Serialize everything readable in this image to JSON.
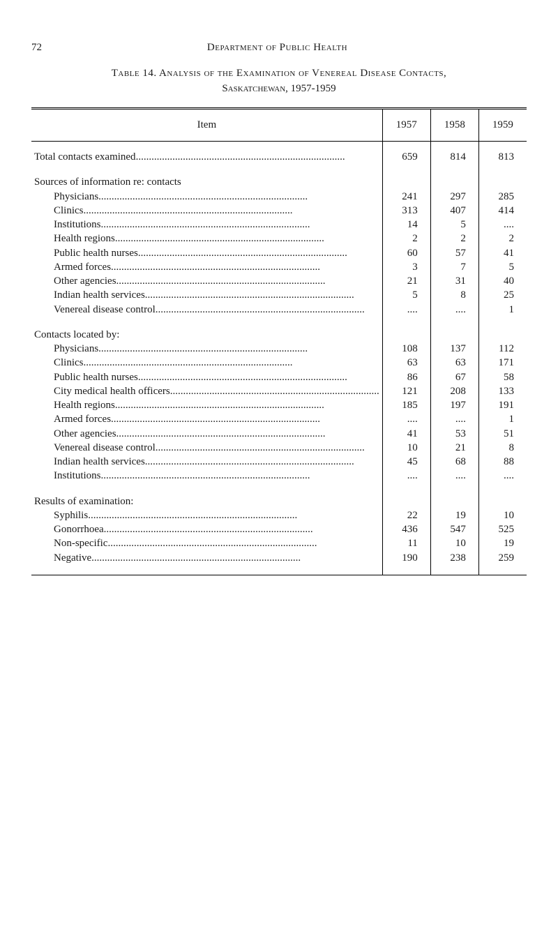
{
  "page": {
    "number": "72",
    "department": "Department of Public Health"
  },
  "caption": {
    "line1_prefix": "Table 14. ",
    "line1_main": "Analysis of the Examination of Venereal Disease Contacts,",
    "line2": "Saskatchewan, 1957-1959"
  },
  "table": {
    "headers": {
      "item": "Item",
      "y1957": "1957",
      "y1958": "1958",
      "y1959": "1959"
    },
    "sections": [
      {
        "header": null,
        "rows": [
          {
            "label": "Total contacts examined",
            "y1957": "659",
            "y1958": "814",
            "y1959": "813"
          }
        ]
      },
      {
        "header": "Sources of information re: contacts",
        "rows": [
          {
            "label": "Physicians",
            "y1957": "241",
            "y1958": "297",
            "y1959": "285"
          },
          {
            "label": "Clinics",
            "y1957": "313",
            "y1958": "407",
            "y1959": "414"
          },
          {
            "label": "Institutions",
            "y1957": "14",
            "y1958": "5",
            "y1959": "...."
          },
          {
            "label": "Health regions",
            "y1957": "2",
            "y1958": "2",
            "y1959": "2"
          },
          {
            "label": "Public health nurses",
            "y1957": "60",
            "y1958": "57",
            "y1959": "41"
          },
          {
            "label": "Armed forces",
            "y1957": "3",
            "y1958": "7",
            "y1959": "5"
          },
          {
            "label": "Other agencies",
            "y1957": "21",
            "y1958": "31",
            "y1959": "40"
          },
          {
            "label": "Indian health services",
            "y1957": "5",
            "y1958": "8",
            "y1959": "25"
          },
          {
            "label": "Venereal disease control",
            "y1957": "....",
            "y1958": "....",
            "y1959": "1"
          }
        ]
      },
      {
        "header": "Contacts located by:",
        "rows": [
          {
            "label": "Physicians",
            "y1957": "108",
            "y1958": "137",
            "y1959": "112"
          },
          {
            "label": "Clinics",
            "y1957": "63",
            "y1958": "63",
            "y1959": "171"
          },
          {
            "label": "Public health nurses",
            "y1957": "86",
            "y1958": "67",
            "y1959": "58"
          },
          {
            "label": "City medical health officers",
            "y1957": "121",
            "y1958": "208",
            "y1959": "133"
          },
          {
            "label": "Health regions",
            "y1957": "185",
            "y1958": "197",
            "y1959": "191"
          },
          {
            "label": "Armed forces",
            "y1957": "....",
            "y1958": "....",
            "y1959": "1"
          },
          {
            "label": "Other agencies",
            "y1957": "41",
            "y1958": "53",
            "y1959": "51"
          },
          {
            "label": "Venereal disease control",
            "y1957": "10",
            "y1958": "21",
            "y1959": "8"
          },
          {
            "label": "Indian health services",
            "y1957": "45",
            "y1958": "68",
            "y1959": "88"
          },
          {
            "label": "Institutions",
            "y1957": "....",
            "y1958": "....",
            "y1959": "...."
          }
        ]
      },
      {
        "header": "Results of examination:",
        "rows": [
          {
            "label": "Syphilis",
            "y1957": "22",
            "y1958": "19",
            "y1959": "10"
          },
          {
            "label": "Gonorrhoea",
            "y1957": "436",
            "y1958": "547",
            "y1959": "525"
          },
          {
            "label": "Non-specific",
            "y1957": "11",
            "y1958": "10",
            "y1959": "19"
          },
          {
            "label": "Negative",
            "y1957": "190",
            "y1958": "238",
            "y1959": "259"
          }
        ]
      }
    ]
  },
  "style": {
    "font_family": "Georgia, 'Times New Roman', serif",
    "font_size_pt": 11,
    "text_color": "#1a1a1a",
    "background_color": "#ffffff",
    "border_color": "#000000",
    "dot_leader_char": "."
  }
}
